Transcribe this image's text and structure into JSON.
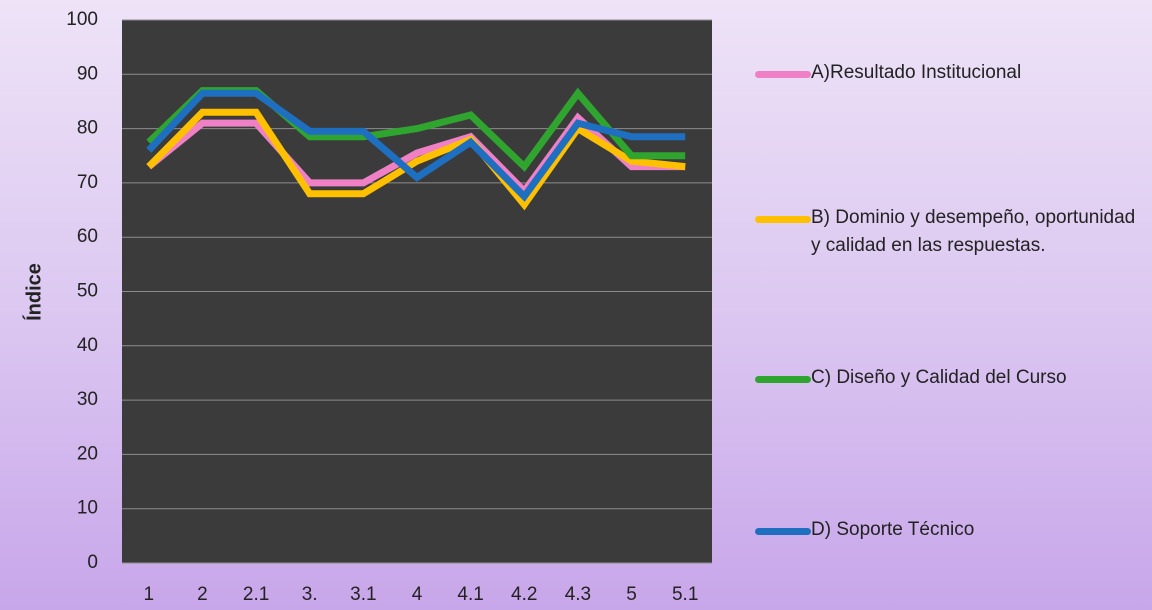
{
  "chart_data": {
    "type": "line",
    "y_label": "Índice",
    "categories": [
      "1",
      "2",
      "2.1",
      "3.",
      "3.1",
      "4",
      "4.1",
      "4.2",
      "4.3",
      "5",
      "5.1"
    ],
    "series": [
      {
        "name": "A)Resultado Institucional",
        "color": "#ef80c6",
        "values": [
          73,
          81,
          81,
          70,
          70,
          75.5,
          78.5,
          68.5,
          82,
          73,
          73
        ]
      },
      {
        "name": "B) Dominio y desempeño, oportunidad y calidad en las respuestas.",
        "color": "#ffc000",
        "values": [
          73,
          83,
          83,
          68,
          68,
          74,
          78,
          66,
          80,
          74,
          73
        ]
      },
      {
        "name": "C)  Diseño y Calidad del Curso",
        "color": "#2fa52f",
        "values": [
          77.5,
          87,
          87,
          78.5,
          78.5,
          80,
          82.5,
          73,
          86.5,
          75,
          75
        ]
      },
      {
        "name": "D)  Soporte Técnico",
        "color": "#1f6fc0",
        "values": [
          76,
          86.5,
          86.5,
          79.5,
          79.5,
          71,
          77.5,
          67.5,
          81,
          78.5,
          78.5
        ]
      }
    ],
    "ylim": [
      0,
      100
    ],
    "yticks": [
      0,
      10,
      20,
      30,
      40,
      50,
      60,
      70,
      80,
      90,
      100
    ],
    "grid": true
  }
}
